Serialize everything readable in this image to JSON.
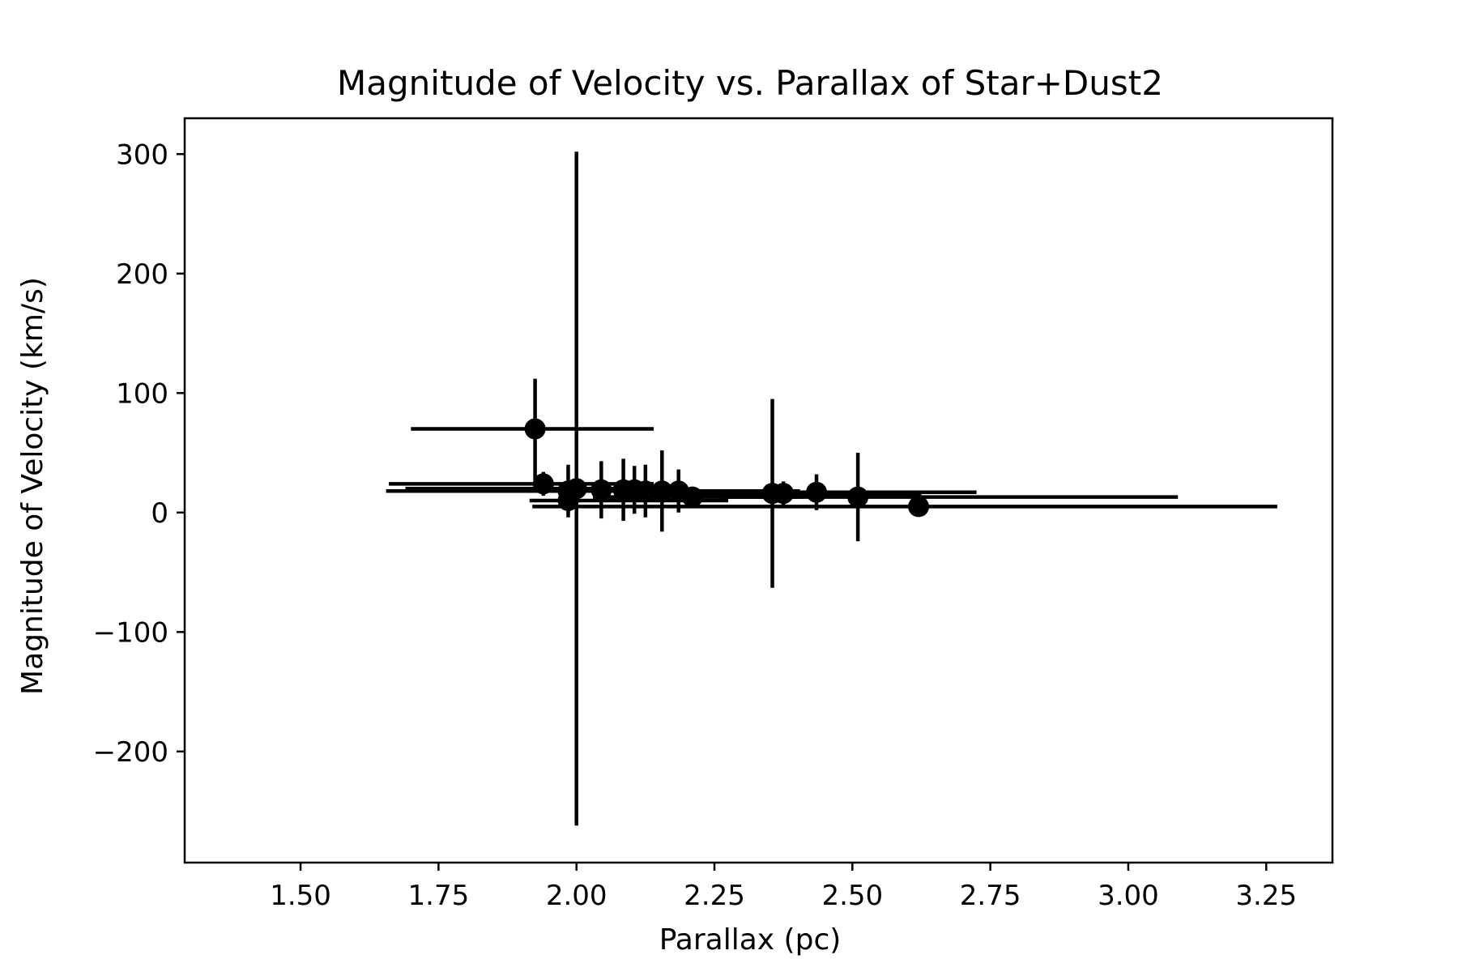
{
  "chart_data": {
    "type": "scatter",
    "title": "Magnitude of Velocity vs. Parallax of Star+Dust2",
    "xlabel": "Parallax (pc)",
    "ylabel": "Magnitude of Velocity (km/s)",
    "xlim": [
      1.29,
      3.37
    ],
    "ylim": [
      -293,
      330
    ],
    "xticks": [
      1.5,
      1.75,
      2.0,
      2.25,
      2.5,
      2.75,
      3.0,
      3.25
    ],
    "xtick_labels": [
      "1.50",
      "1.75",
      "2.00",
      "2.25",
      "2.50",
      "2.75",
      "3.00",
      "3.25"
    ],
    "yticks": [
      -200,
      -100,
      0,
      100,
      200,
      300
    ],
    "ytick_labels": [
      "−200",
      "−100",
      "0",
      "100",
      "200",
      "300"
    ],
    "grid": false,
    "legend": "none",
    "marker_color": "#000000",
    "points": [
      {
        "x": 1.925,
        "y": 70,
        "xerr": [
          0.225,
          0.215
        ],
        "yerr": [
          43,
          42
        ]
      },
      {
        "x": 1.94,
        "y": 24,
        "xerr": [
          0.28,
          0.2
        ],
        "yerr": [
          10,
          10
        ]
      },
      {
        "x": 1.985,
        "y": 10,
        "xerr": [
          0.07,
          0.29
        ],
        "yerr": [
          10,
          10
        ]
      },
      {
        "x": 1.985,
        "y": 18,
        "xerr": [
          0.33,
          0.2
        ],
        "yerr": [
          22,
          22
        ]
      },
      {
        "x": 2.0,
        "y": 20,
        "xerr": [
          0.31,
          0.13
        ],
        "yerr": [
          282,
          282
        ]
      },
      {
        "x": 2.045,
        "y": 19,
        "xerr": [
          0.09,
          0.1
        ],
        "yerr": [
          24,
          24
        ]
      },
      {
        "x": 2.085,
        "y": 19,
        "xerr": [
          0.1,
          0.1
        ],
        "yerr": [
          26,
          26
        ]
      },
      {
        "x": 2.105,
        "y": 19,
        "xerr": [
          0.09,
          0.1
        ],
        "yerr": [
          20,
          20
        ]
      },
      {
        "x": 2.125,
        "y": 18,
        "xerr": [
          0.09,
          0.12
        ],
        "yerr": [
          22,
          22
        ]
      },
      {
        "x": 2.155,
        "y": 18,
        "xerr": [
          0.13,
          0.2
        ],
        "yerr": [
          34,
          34
        ]
      },
      {
        "x": 2.185,
        "y": 18,
        "xerr": [
          0.15,
          0.22
        ],
        "yerr": [
          18,
          18
        ]
      },
      {
        "x": 2.21,
        "y": 13,
        "xerr": [
          0.18,
          0.2
        ],
        "yerr": [
          5,
          5
        ]
      },
      {
        "x": 2.355,
        "y": 16,
        "xerr": [
          0.23,
          0.27
        ],
        "yerr": [
          79,
          79
        ]
      },
      {
        "x": 2.375,
        "y": 16,
        "xerr": [
          0.22,
          0.25
        ],
        "yerr": [
          10,
          10
        ]
      },
      {
        "x": 2.435,
        "y": 17,
        "xerr": [
          0.2,
          0.29
        ],
        "yerr": [
          15,
          15
        ]
      },
      {
        "x": 2.51,
        "y": 13,
        "xerr": [
          0.25,
          0.58
        ],
        "yerr": [
          37,
          37
        ]
      },
      {
        "x": 2.62,
        "y": 5,
        "xerr": [
          0.7,
          0.65
        ],
        "yerr": [
          0,
          0
        ]
      }
    ]
  }
}
